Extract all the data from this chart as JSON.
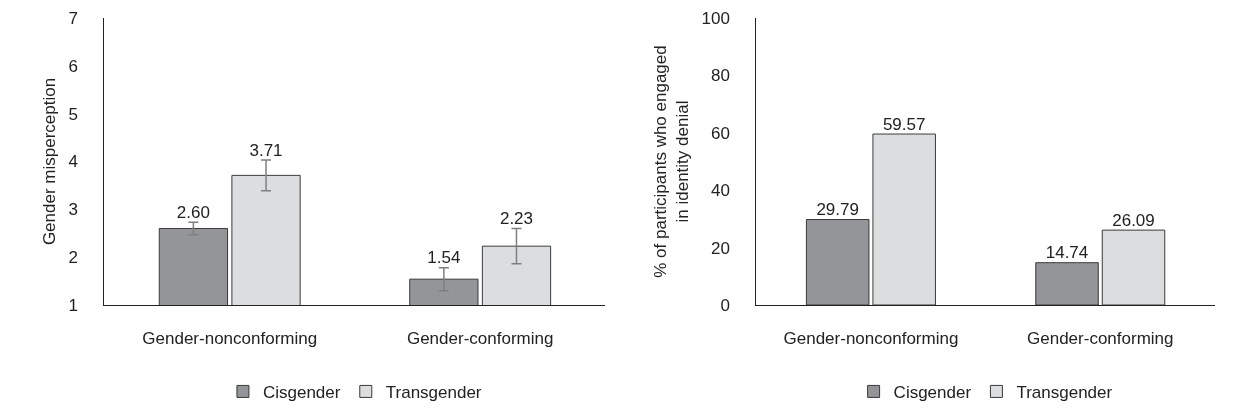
{
  "chart_data": [
    {
      "type": "bar",
      "ylabel": "Gender misperception",
      "categories": [
        "Gender-nonconforming",
        "Gender-conforming"
      ],
      "series": [
        {
          "name": "Cisgender",
          "color": "#939598",
          "values": [
            2.6,
            1.54
          ],
          "errors": [
            0.13,
            0.24
          ],
          "value_labels": [
            "2.60",
            "1.54"
          ]
        },
        {
          "name": "Transgender",
          "color": "#dcdddf",
          "values": [
            3.71,
            2.23
          ],
          "errors": [
            0.32,
            0.37
          ],
          "value_labels": [
            "3.71",
            "2.23"
          ]
        }
      ],
      "ylim": [
        1,
        7
      ],
      "yticks": [
        1,
        2,
        3,
        4,
        5,
        6,
        7
      ],
      "grid": false,
      "legend": "bottom"
    },
    {
      "type": "bar",
      "ylabel": "% of participants who engaged in identity denial",
      "categories": [
        "Gender-nonconforming",
        "Gender-conforming"
      ],
      "series": [
        {
          "name": "Cisgender",
          "color": "#939598",
          "values": [
            29.79,
            14.74
          ]
        },
        {
          "name": "Transgender",
          "color": "#dcdddf",
          "values": [
            59.57,
            26.09
          ]
        }
      ],
      "ylim": [
        0,
        100
      ],
      "yticks": [
        0,
        20,
        40,
        60,
        80,
        100
      ],
      "data_labels": true,
      "grid": false,
      "legend": "bottom"
    }
  ]
}
